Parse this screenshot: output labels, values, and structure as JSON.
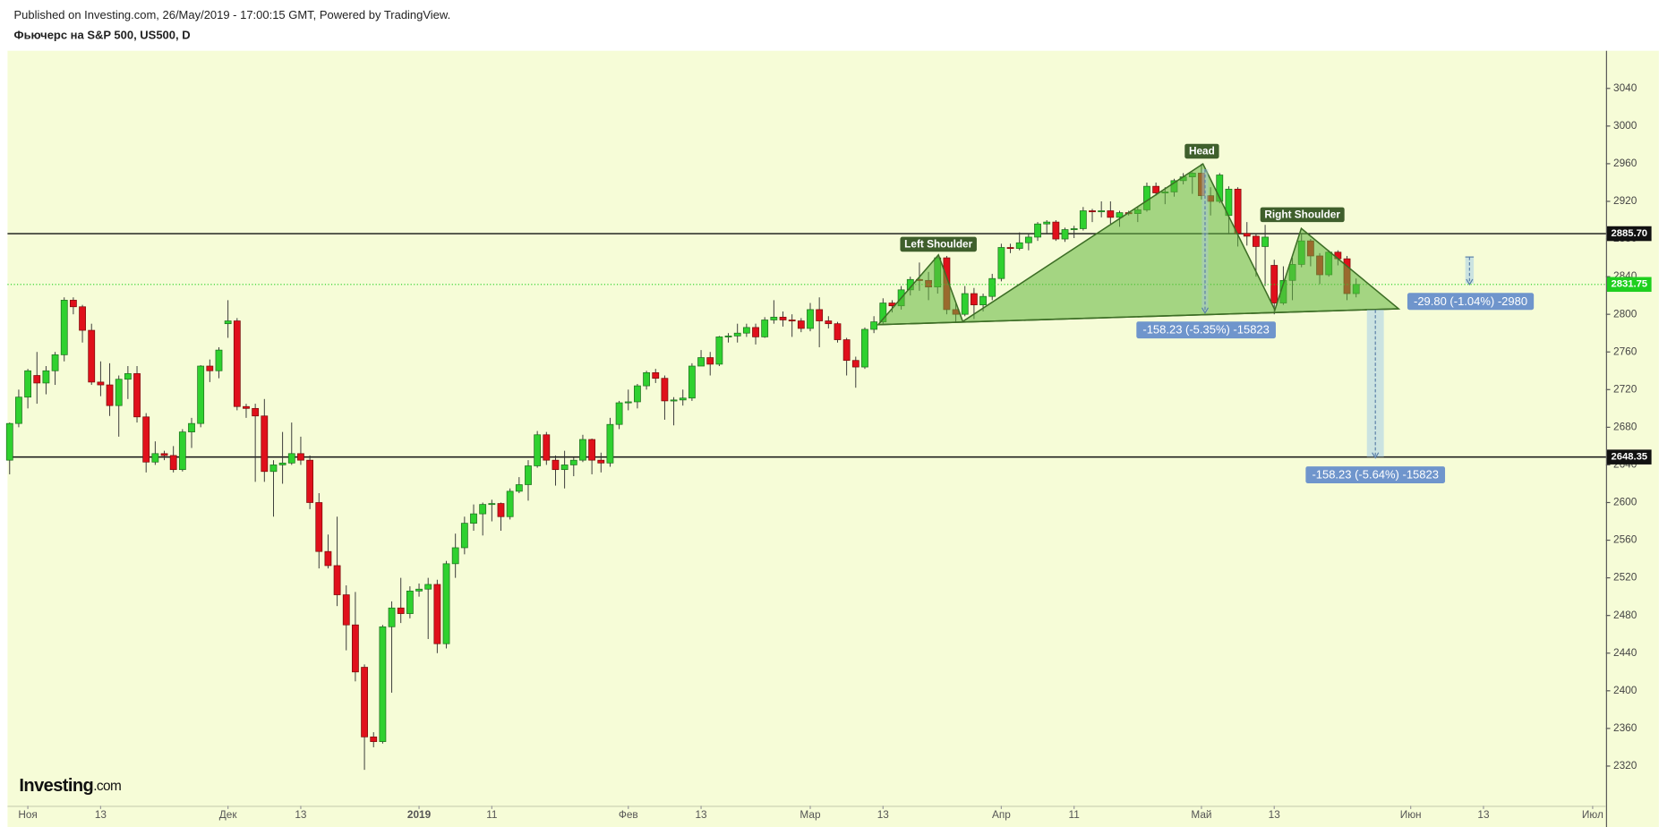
{
  "header": {
    "published": "Published on Investing.com, 26/May/2019 - 17:00:15 GMT, Powered by TradingView.",
    "title": "Фьючерс на S&P 500, US500, D"
  },
  "chart_data": {
    "type": "candlestick",
    "categories": [
      null,
      null,
      "Ноя",
      null,
      null,
      null,
      null,
      null,
      null,
      null,
      "13",
      null,
      null,
      null,
      null,
      null,
      null,
      null,
      null,
      null,
      null,
      null,
      null,
      null,
      "Дек",
      null,
      null,
      null,
      null,
      null,
      null,
      null,
      "13",
      null,
      null,
      null,
      null,
      null,
      null,
      null,
      null,
      null,
      null,
      null,
      null,
      "2019",
      null,
      null,
      null,
      null,
      null,
      null,
      null,
      "11",
      null,
      null,
      null,
      null,
      null,
      null,
      null,
      null,
      null,
      null,
      null,
      null,
      null,
      null,
      "Фев",
      null,
      null,
      null,
      null,
      null,
      null,
      null,
      "13",
      null,
      null,
      null,
      null,
      null,
      null,
      null,
      null,
      null,
      null,
      null,
      "Мар",
      null,
      null,
      null,
      null,
      null,
      null,
      null,
      "13",
      null,
      null,
      null,
      null,
      null,
      null,
      null,
      null,
      null,
      null,
      null,
      null,
      "Апр",
      null,
      null,
      null,
      null,
      null,
      null,
      null,
      "11",
      null,
      null,
      null,
      null,
      null,
      null,
      null,
      null,
      null,
      null,
      null,
      null,
      null,
      "Май",
      null,
      null,
      null,
      null,
      null,
      null,
      null,
      "13",
      null,
      null,
      null,
      null,
      null,
      null,
      null,
      null,
      null,
      null,
      null,
      null,
      null,
      null,
      "Июн",
      null,
      null,
      null,
      null,
      null,
      null,
      null,
      "13",
      null,
      null,
      null,
      null,
      null,
      null,
      null,
      null,
      null,
      null,
      null,
      "Июл"
    ],
    "open": [
      2645,
      2684,
      2712,
      2735,
      2727,
      2740,
      2757,
      2815,
      2808,
      2783,
      2728,
      2725,
      2703,
      2731,
      2737,
      2691,
      2643,
      2652,
      2650,
      2635,
      2675,
      2684,
      2745,
      2740,
      2790,
      2793,
      2702,
      2700,
      2692,
      2633,
      2640,
      2642,
      2652,
      2645,
      2600,
      2548,
      2533,
      2502,
      2470,
      2425,
      2351,
      2346,
      2468,
      2488,
      2482,
      2506,
      2508,
      2513,
      2450,
      2535,
      2552,
      2578,
      2588,
      2598,
      2599,
      2585,
      2612,
      2619,
      2639,
      2672,
      2645,
      2635,
      2640,
      2645,
      2667,
      2645,
      2642,
      2683,
      2706,
      2707,
      2724,
      2738,
      2732,
      2708,
      2709,
      2711,
      2745,
      2754,
      2747,
      2776,
      2777,
      2780,
      2786,
      2776,
      2794,
      2797,
      2794,
      2793,
      2785,
      2805,
      2793,
      2790,
      2773,
      2751,
      2744,
      2784,
      2792,
      2812,
      2809,
      2826,
      2837,
      2836,
      2829,
      2860,
      2805,
      2800,
      2822,
      2810,
      2819,
      2838,
      2871,
      2870,
      2876,
      2882,
      2896,
      2898,
      2880,
      2890,
      2891,
      2910,
      2909,
      2910,
      2903,
      2908,
      2907,
      2911,
      2936,
      2929,
      2930,
      2942,
      2946,
      2950,
      2926,
      2920,
      2905,
      2933,
      2886,
      2883,
      2872,
      2852,
      2812,
      2836,
      2853,
      2878,
      2862,
      2842,
      2866,
      2859,
      2822,
      null,
      null,
      null,
      null,
      null,
      null,
      null,
      null,
      null,
      null,
      null,
      null,
      null,
      null,
      null,
      null,
      null,
      null,
      null,
      null,
      null,
      null,
      null,
      null,
      null,
      null
    ],
    "high": [
      2685,
      2720,
      2742,
      2760,
      2745,
      2760,
      2818,
      2818,
      2810,
      2790,
      2750,
      2748,
      2735,
      2745,
      2745,
      2695,
      2665,
      2655,
      2660,
      2678,
      2690,
      2746,
      2752,
      2765,
      2815,
      2796,
      2705,
      2705,
      2710,
      2645,
      2675,
      2685,
      2670,
      2650,
      2610,
      2566,
      2585,
      2512,
      2505,
      2428,
      2356,
      2470,
      2495,
      2520,
      2511,
      2514,
      2520,
      2518,
      2538,
      2567,
      2585,
      2598,
      2600,
      2603,
      2600,
      2615,
      2627,
      2645,
      2676,
      2675,
      2650,
      2655,
      2648,
      2672,
      2668,
      2653,
      2690,
      2708,
      2720,
      2726,
      2740,
      2742,
      2735,
      2712,
      2720,
      2748,
      2762,
      2760,
      2777,
      2780,
      2790,
      2790,
      2790,
      2797,
      2815,
      2803,
      2800,
      2796,
      2812,
      2818,
      2798,
      2792,
      2775,
      2755,
      2786,
      2798,
      2817,
      2815,
      2830,
      2840,
      2855,
      2845,
      2862,
      2862,
      2812,
      2830,
      2828,
      2822,
      2843,
      2875,
      2875,
      2887,
      2885,
      2898,
      2900,
      2900,
      2892,
      2894,
      2914,
      2912,
      2920,
      2920,
      2910,
      2910,
      2914,
      2940,
      2940,
      2935,
      2944,
      2950,
      2951,
      2960,
      2935,
      2950,
      2936,
      2935,
      2898,
      2886,
      2895,
      2858,
      2851,
      2860,
      2885,
      2880,
      2865,
      2868,
      2868,
      2862,
      2838,
      null,
      null,
      null,
      null,
      null,
      null,
      null,
      null,
      null,
      null,
      null,
      null,
      null,
      null,
      null,
      null,
      null,
      null,
      null,
      null,
      null,
      null,
      null,
      null,
      null,
      null
    ],
    "low": [
      2630,
      2680,
      2700,
      2705,
      2715,
      2725,
      2750,
      2800,
      2770,
      2725,
      2713,
      2692,
      2670,
      2710,
      2685,
      2632,
      2640,
      2645,
      2632,
      2633,
      2658,
      2680,
      2728,
      2732,
      2775,
      2698,
      2690,
      2622,
      2622,
      2585,
      2620,
      2640,
      2640,
      2593,
      2530,
      2530,
      2490,
      2443,
      2410,
      2316,
      2340,
      2344,
      2398,
      2472,
      2477,
      2500,
      2455,
      2440,
      2445,
      2520,
      2545,
      2570,
      2565,
      2580,
      2570,
      2582,
      2610,
      2602,
      2637,
      2640,
      2618,
      2615,
      2628,
      2643,
      2630,
      2632,
      2638,
      2678,
      2698,
      2700,
      2720,
      2727,
      2688,
      2682,
      2703,
      2708,
      2745,
      2735,
      2745,
      2770,
      2770,
      2776,
      2768,
      2775,
      2790,
      2787,
      2776,
      2781,
      2782,
      2765,
      2785,
      2770,
      2735,
      2722,
      2742,
      2780,
      2790,
      2802,
      2805,
      2820,
      2825,
      2815,
      2822,
      2800,
      2791,
      2798,
      2795,
      2803,
      2815,
      2835,
      2865,
      2868,
      2868,
      2878,
      2885,
      2878,
      2877,
      2881,
      2889,
      2898,
      2903,
      2896,
      2893,
      2905,
      2898,
      2909,
      2926,
      2917,
      2925,
      2938,
      2928,
      2922,
      2905,
      2918,
      2885,
      2872,
      2873,
      2840,
      2830,
      2800,
      2810,
      2815,
      2850,
      2851,
      2832,
      2840,
      2852,
      2815,
      2818,
      null,
      null,
      null,
      null,
      null,
      null,
      null,
      null,
      null,
      null,
      null,
      null,
      null,
      null,
      null,
      null,
      null,
      null,
      null,
      null,
      null,
      null,
      null,
      null,
      null,
      null
    ],
    "close": [
      2684,
      2712,
      2740,
      2727,
      2740,
      2757,
      2815,
      2808,
      2783,
      2728,
      2725,
      2703,
      2731,
      2737,
      2691,
      2643,
      2652,
      2650,
      2635,
      2675,
      2684,
      2745,
      2740,
      2762,
      2793,
      2702,
      2700,
      2692,
      2633,
      2640,
      2642,
      2652,
      2645,
      2600,
      2548,
      2533,
      2502,
      2470,
      2420,
      2351,
      2346,
      2468,
      2488,
      2482,
      2506,
      2508,
      2513,
      2450,
      2535,
      2552,
      2578,
      2588,
      2598,
      2599,
      2585,
      2612,
      2619,
      2639,
      2672,
      2645,
      2635,
      2640,
      2645,
      2667,
      2645,
      2642,
      2683,
      2706,
      2707,
      2724,
      2738,
      2732,
      2708,
      2709,
      2711,
      2745,
      2754,
      2747,
      2776,
      2777,
      2780,
      2786,
      2776,
      2794,
      2797,
      2794,
      2793,
      2785,
      2805,
      2793,
      2790,
      2773,
      2751,
      2744,
      2784,
      2792,
      2812,
      2809,
      2826,
      2837,
      2836,
      2829,
      2860,
      2805,
      2800,
      2822,
      2810,
      2819,
      2838,
      2871,
      2870,
      2876,
      2882,
      2896,
      2898,
      2880,
      2890,
      2891,
      2910,
      2909,
      2910,
      2903,
      2908,
      2907,
      2911,
      2936,
      2929,
      2930,
      2942,
      2946,
      2950,
      2926,
      2920,
      2948,
      2933,
      2886,
      2883,
      2872,
      2882,
      2812,
      2836,
      2853,
      2878,
      2862,
      2842,
      2866,
      2859,
      2822,
      2831.75,
      null,
      null,
      null,
      null,
      null,
      null,
      null,
      null,
      null,
      null,
      null,
      null,
      null,
      null,
      null,
      null,
      null,
      null,
      null,
      null,
      null,
      null,
      null,
      null,
      null,
      null
    ],
    "up_color": "#2fd12f",
    "down_color": "#e0101b",
    "last_price_color": "#1fcf1f",
    "ylim": [
      2280,
      3080
    ],
    "yticks": [
      2320,
      2360,
      2400,
      2440,
      2480,
      2520,
      2560,
      2600,
      2640,
      2680,
      2720,
      2760,
      2800,
      2840,
      2880,
      2920,
      2960,
      3000,
      3040
    ],
    "price_lines": [
      {
        "value": 2885.7,
        "label": "2885.70"
      },
      {
        "value": 2648.35,
        "label": "2648.35"
      }
    ],
    "annotations": [
      "Left Shoulder",
      "Head",
      "Right Shoulder"
    ],
    "measurements": [
      "-158.23 (-5.35%) -15823",
      "-158.23 (-5.64%) -15823",
      "-29.80 (-1.04%) -2980"
    ]
  },
  "logo": {
    "brand": "Investing",
    "suffix": ".com"
  }
}
